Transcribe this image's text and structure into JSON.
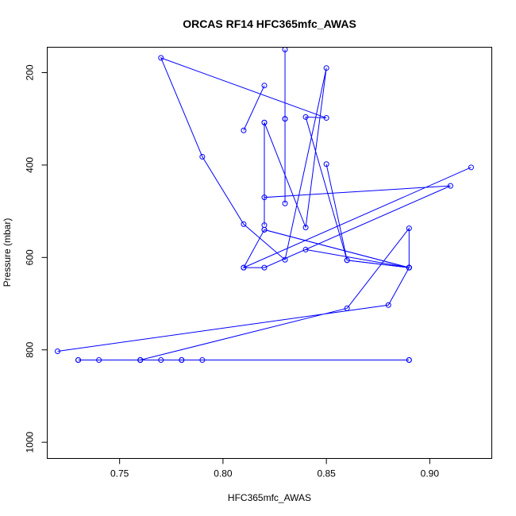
{
  "chart_data": {
    "type": "line",
    "title": "ORCAS RF14 HFC365mfc_AWAS",
    "xlabel": "HFC365mfc_AWAS",
    "ylabel": "Pressure (mbar)",
    "xlim": [
      0.715,
      0.93
    ],
    "ylim": [
      1035,
      145
    ],
    "y_inverted": true,
    "x_ticks": [
      0.75,
      0.8,
      0.85,
      0.9
    ],
    "x_tick_labels": [
      "0.75",
      "0.80",
      "0.85",
      "0.90"
    ],
    "y_ticks": [
      200,
      400,
      600,
      800,
      1000
    ],
    "y_tick_labels": [
      "200",
      "400",
      "600",
      "800",
      "1000"
    ],
    "grid": false,
    "legend": "none",
    "series_color": "#0000ff",
    "markers": "open-circle",
    "series": [
      {
        "x": [
          0.89,
          0.79,
          0.78,
          0.78,
          0.77,
          0.76,
          0.76,
          0.74,
          0.73,
          0.73,
          0.89,
          0.76,
          0.86,
          0.89,
          0.89,
          0.82,
          0.81,
          0.92,
          0.81,
          0.82,
          0.91,
          0.82,
          0.82,
          0.84,
          0.85,
          0.83,
          0.81,
          0.79,
          0.77,
          0.85,
          0.84,
          0.86,
          0.89,
          0.88,
          0.72
        ],
        "y": [
          822,
          822,
          822,
          822,
          822,
          822,
          822,
          822,
          822,
          822,
          822,
          822,
          710,
          537,
          622,
          540,
          622,
          405,
          622,
          622,
          445,
          470,
          308,
          535,
          190,
          605,
          528,
          382,
          168,
          298,
          296,
          606,
          622,
          703,
          803
        ]
      },
      {
        "x": [
          0.82,
          0.82
        ],
        "y": [
          530,
          308
        ]
      },
      {
        "x": [
          0.83,
          0.83
        ],
        "y": [
          483,
          300
        ]
      },
      {
        "x": [
          0.83,
          0.83
        ],
        "y": [
          300,
          150
        ]
      },
      {
        "x": [
          0.85,
          0.86,
          0.89
        ],
        "y": [
          398,
          606,
          622
        ]
      },
      {
        "x": [
          0.84,
          0.89
        ],
        "y": [
          583,
          622
        ]
      },
      {
        "x": [
          0.82,
          0.89
        ],
        "y": [
          540,
          622
        ]
      },
      {
        "x": [
          0.82,
          0.81
        ],
        "y": [
          228,
          325
        ]
      }
    ]
  }
}
